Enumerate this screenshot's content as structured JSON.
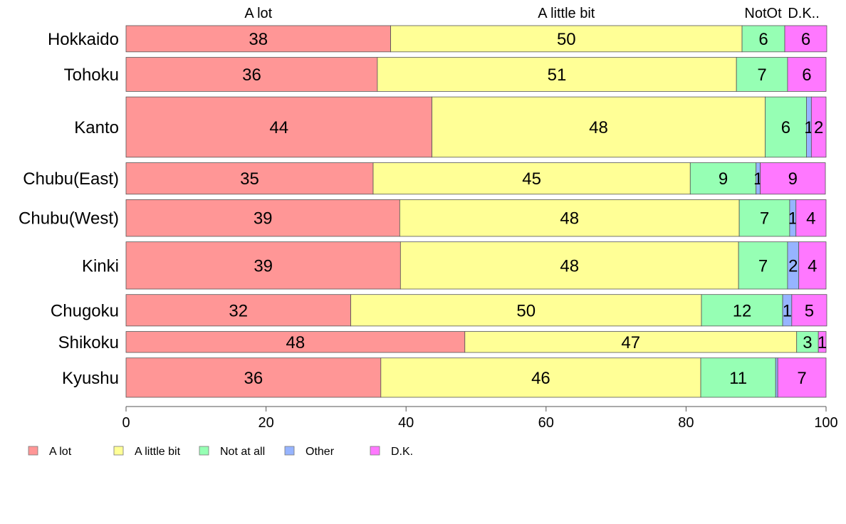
{
  "chart_data": {
    "type": "bar",
    "orientation": "horizontal-stacked",
    "variable_width": true,
    "categories": [
      "Hokkaido",
      "Tohoku",
      "Kanto",
      "Chubu(East)",
      "Chubu(West)",
      "Kinki",
      "Chugoku",
      "Shikoku",
      "Kyushu"
    ],
    "series": [
      {
        "name": "A lot",
        "color": "#FF9696",
        "values": [
          37.8,
          35.9,
          43.7,
          35.3,
          39.1,
          39.2,
          32.1,
          48.4,
          36.4
        ]
      },
      {
        "name": "A little bit",
        "color": "#FFFF96",
        "values": [
          50.2,
          51.3,
          47.6,
          45.3,
          48.5,
          48.3,
          50.1,
          47.4,
          45.7
        ]
      },
      {
        "name": "Not at all",
        "color": "#96FFB4",
        "values": [
          6.1,
          7.3,
          5.9,
          9.4,
          7.2,
          7.0,
          11.6,
          3.1,
          10.7
        ]
      },
      {
        "name": "Other",
        "color": "#96B4FF",
        "values": [
          0.0,
          0.0,
          0.7,
          0.6,
          0.9,
          1.6,
          1.3,
          0.0,
          0.3
        ]
      },
      {
        "name": "D.K.",
        "color": "#FF78FF",
        "values": [
          6.0,
          5.5,
          2.1,
          9.3,
          4.3,
          3.9,
          5.0,
          1.1,
          6.9
        ]
      }
    ],
    "labels": [
      [
        "38",
        "50",
        "6",
        "",
        "6"
      ],
      [
        "36",
        "51",
        "7",
        "",
        "6"
      ],
      [
        "44",
        "48",
        "6",
        "1",
        "2"
      ],
      [
        "35",
        "45",
        "9",
        "1",
        "9"
      ],
      [
        "39",
        "48",
        "7",
        "1",
        "4"
      ],
      [
        "39",
        "48",
        "7",
        "2",
        "4"
      ],
      [
        "32",
        "50",
        "12",
        "1",
        "5"
      ],
      [
        "48",
        "47",
        "3",
        "",
        "1"
      ],
      [
        "36",
        "46",
        "11",
        "",
        "7"
      ]
    ],
    "relative_bar_widths": [
      1.0,
      1.3,
      2.3,
      1.2,
      1.4,
      1.8,
      1.2,
      0.8,
      1.5
    ],
    "top_labels": [
      "A lot",
      "A little bit",
      "NotOt",
      "D.K.."
    ],
    "xlim": [
      0,
      100
    ],
    "xticks": [
      "0",
      "20",
      "40",
      "60",
      "80",
      "100"
    ],
    "legend_position": "bottom-left"
  }
}
